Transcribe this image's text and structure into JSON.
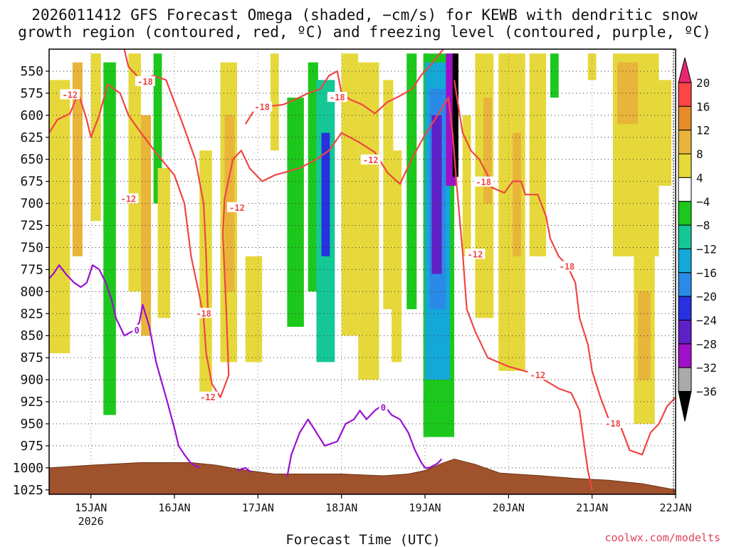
{
  "chart_data": {
    "type": "heatmap",
    "title_line1": "2026011412 GFS Forecast Omega (shaded, −cm/s) for KEWB with dendritic snow",
    "title_line2": "growth region (contoured, red, ºC) and freezing level (contoured, purple, ºC)",
    "xlabel": "Forecast Time (UTC)",
    "credit": "coolwx.com/modelts",
    "x_range_days": [
      14.5,
      22.0
    ],
    "x_ticks": [
      {
        "day": 15,
        "label": "15JAN",
        "sub": "2026"
      },
      {
        "day": 16,
        "label": "16JAN"
      },
      {
        "day": 17,
        "label": "17JAN"
      },
      {
        "day": 18,
        "label": "18JAN"
      },
      {
        "day": 19,
        "label": "19JAN"
      },
      {
        "day": 20,
        "label": "20JAN"
      },
      {
        "day": 21,
        "label": "21JAN"
      },
      {
        "day": 22,
        "label": "22JAN"
      }
    ],
    "y_range_hpa": [
      525,
      1030
    ],
    "y_ticks": [
      550,
      575,
      600,
      625,
      650,
      675,
      700,
      725,
      750,
      775,
      800,
      825,
      850,
      875,
      900,
      925,
      950,
      975,
      1000,
      1025
    ],
    "colorbar": {
      "labels": [
        "20",
        "16",
        "12",
        "8",
        "4",
        "−4",
        "−8",
        "−12",
        "−16",
        "−20",
        "−24",
        "−28",
        "−32",
        "−36"
      ],
      "colors": [
        "#e8266e",
        "#ff4545",
        "#e68a2a",
        "#e8b43a",
        "#e6d83a",
        "#ffffff",
        "#1cc81c",
        "#14c896",
        "#14a8d8",
        "#2a8ae8",
        "#2830e0",
        "#6020c8",
        "#a010c8",
        "#aaaaaa",
        "#000000"
      ]
    },
    "omega_features": [
      {
        "t0": 14.5,
        "t1": 14.75,
        "p0": 560,
        "p1": 870,
        "value": 5
      },
      {
        "t0": 14.78,
        "t1": 14.9,
        "p0": 540,
        "p1": 760,
        "value": 9
      },
      {
        "t0": 15.0,
        "t1": 15.12,
        "p0": 530,
        "p1": 720,
        "value": 6
      },
      {
        "t0": 15.15,
        "t1": 15.3,
        "p0": 540,
        "p1": 940,
        "value": -6
      },
      {
        "t0": 15.45,
        "t1": 15.6,
        "p0": 530,
        "p1": 800,
        "value": 6
      },
      {
        "t0": 15.6,
        "t1": 15.72,
        "p0": 600,
        "p1": 850,
        "value": 9
      },
      {
        "t0": 15.75,
        "t1": 15.85,
        "p0": 530,
        "p1": 700,
        "value": -6
      },
      {
        "t0": 15.8,
        "t1": 15.95,
        "p0": 660,
        "p1": 830,
        "value": 6
      },
      {
        "t0": 16.3,
        "t1": 16.45,
        "p0": 640,
        "p1": 920,
        "value": 6
      },
      {
        "t0": 16.55,
        "t1": 16.75,
        "p0": 540,
        "p1": 880,
        "value": 7
      },
      {
        "t0": 16.6,
        "t1": 16.72,
        "p0": 600,
        "p1": 800,
        "value": 11
      },
      {
        "t0": 16.85,
        "t1": 17.05,
        "p0": 760,
        "p1": 880,
        "value": 5
      },
      {
        "t0": 17.15,
        "t1": 17.25,
        "p0": 530,
        "p1": 640,
        "value": 5
      },
      {
        "t0": 17.35,
        "t1": 17.55,
        "p0": 580,
        "p1": 840,
        "value": -6
      },
      {
        "t0": 17.6,
        "t1": 17.72,
        "p0": 540,
        "p1": 800,
        "value": -6
      },
      {
        "t0": 17.7,
        "t1": 17.92,
        "p0": 560,
        "p1": 880,
        "value": -10
      },
      {
        "t0": 17.76,
        "t1": 17.86,
        "p0": 620,
        "p1": 760,
        "value": -21
      },
      {
        "t0": 18.0,
        "t1": 18.2,
        "p0": 530,
        "p1": 850,
        "value": 5
      },
      {
        "t0": 18.2,
        "t1": 18.45,
        "p0": 540,
        "p1": 900,
        "value": 6
      },
      {
        "t0": 18.5,
        "t1": 18.62,
        "p0": 560,
        "p1": 820,
        "value": 5
      },
      {
        "t0": 18.6,
        "t1": 18.72,
        "p0": 640,
        "p1": 880,
        "value": 6
      },
      {
        "t0": 18.78,
        "t1": 18.9,
        "p0": 530,
        "p1": 820,
        "value": -6
      },
      {
        "t0": 18.98,
        "t1": 19.35,
        "p0": 530,
        "p1": 965,
        "value": -7
      },
      {
        "t0": 19.0,
        "t1": 19.3,
        "p0": 540,
        "p1": 900,
        "value": -14
      },
      {
        "t0": 19.05,
        "t1": 19.25,
        "p0": 570,
        "p1": 820,
        "value": -18
      },
      {
        "t0": 19.08,
        "t1": 19.2,
        "p0": 600,
        "p1": 780,
        "value": -25
      },
      {
        "t0": 19.25,
        "t1": 19.38,
        "p0": 530,
        "p1": 680,
        "value": -29
      },
      {
        "t0": 19.33,
        "t1": 19.4,
        "p0": 530,
        "p1": 670,
        "value": -37
      },
      {
        "t0": 19.45,
        "t1": 19.55,
        "p0": 600,
        "p1": 760,
        "value": 6
      },
      {
        "t0": 19.6,
        "t1": 19.82,
        "p0": 530,
        "p1": 830,
        "value": 5
      },
      {
        "t0": 19.7,
        "t1": 19.8,
        "p0": 580,
        "p1": 700,
        "value": 9
      },
      {
        "t0": 19.88,
        "t1": 20.2,
        "p0": 530,
        "p1": 890,
        "value": 5
      },
      {
        "t0": 20.05,
        "t1": 20.15,
        "p0": 620,
        "p1": 760,
        "value": 8
      },
      {
        "t0": 20.25,
        "t1": 20.45,
        "p0": 530,
        "p1": 760,
        "value": 5
      },
      {
        "t0": 20.5,
        "t1": 20.6,
        "p0": 530,
        "p1": 580,
        "value": -6
      },
      {
        "t0": 20.95,
        "t1": 21.05,
        "p0": 530,
        "p1": 560,
        "value": 5
      },
      {
        "t0": 21.25,
        "t1": 21.8,
        "p0": 530,
        "p1": 760,
        "value": 5
      },
      {
        "t0": 21.3,
        "t1": 21.55,
        "p0": 540,
        "p1": 610,
        "value": 10
      },
      {
        "t0": 21.5,
        "t1": 21.75,
        "p0": 760,
        "p1": 950,
        "value": 5
      },
      {
        "t0": 21.55,
        "t1": 21.7,
        "p0": 800,
        "p1": 900,
        "value": 10
      },
      {
        "t0": 21.8,
        "t1": 21.95,
        "p0": 560,
        "p1": 680,
        "value": 6
      }
    ],
    "terrain_hpa": [
      [
        14.5,
        1000
      ],
      [
        15.0,
        997
      ],
      [
        15.6,
        994
      ],
      [
        16.2,
        994
      ],
      [
        16.5,
        997
      ],
      [
        16.8,
        1002
      ],
      [
        17.2,
        1007
      ],
      [
        17.6,
        1007
      ],
      [
        18.0,
        1007
      ],
      [
        18.5,
        1009
      ],
      [
        18.8,
        1007
      ],
      [
        19.0,
        1003
      ],
      [
        19.2,
        995
      ],
      [
        19.35,
        990
      ],
      [
        19.6,
        996
      ],
      [
        19.9,
        1006
      ],
      [
        20.4,
        1009
      ],
      [
        20.8,
        1012
      ],
      [
        21.2,
        1014
      ],
      [
        21.6,
        1018
      ],
      [
        22.0,
        1025
      ]
    ],
    "contours": [
      {
        "label": "-12",
        "color": "#f04545",
        "points": [
          [
            14.5,
            620
          ],
          [
            14.6,
            605
          ],
          [
            14.75,
            598
          ],
          [
            14.85,
            575
          ],
          [
            14.95,
            605
          ],
          [
            15.0,
            625
          ],
          [
            15.1,
            600
          ],
          [
            15.2,
            565
          ],
          [
            15.35,
            575
          ],
          [
            15.45,
            600
          ],
          [
            15.6,
            620
          ],
          [
            15.8,
            645
          ],
          [
            16.0,
            668
          ],
          [
            16.12,
            700
          ],
          [
            16.2,
            760
          ],
          [
            16.3,
            805
          ],
          [
            16.35,
            830
          ],
          [
            16.38,
            870
          ],
          [
            16.45,
            905
          ],
          [
            16.55,
            920
          ],
          [
            16.65,
            895
          ],
          [
            16.62,
            820
          ],
          [
            16.58,
            735
          ],
          [
            16.6,
            695
          ],
          [
            16.7,
            650
          ],
          [
            16.8,
            640
          ],
          [
            16.9,
            660
          ],
          [
            17.05,
            675
          ],
          [
            17.2,
            668
          ],
          [
            17.5,
            660
          ],
          [
            17.7,
            650
          ],
          [
            17.85,
            640
          ],
          [
            18.0,
            620
          ],
          [
            18.2,
            630
          ],
          [
            18.4,
            642
          ],
          [
            18.55,
            665
          ],
          [
            18.7,
            678
          ],
          [
            18.85,
            648
          ],
          [
            19.0,
            622
          ],
          [
            19.15,
            600
          ],
          [
            19.28,
            580
          ],
          [
            19.33,
            620
          ],
          [
            19.38,
            680
          ],
          [
            19.45,
            755
          ],
          [
            19.5,
            820
          ],
          [
            19.6,
            845
          ],
          [
            19.75,
            875
          ],
          [
            20.0,
            885
          ],
          [
            20.3,
            893
          ],
          [
            20.6,
            910
          ],
          [
            20.75,
            915
          ],
          [
            20.85,
            935
          ],
          [
            20.9,
            970
          ],
          [
            20.95,
            1003
          ],
          [
            21.0,
            1025
          ]
        ],
        "label_at": [
          [
            14.75,
            577
          ],
          [
            15.45,
            695
          ],
          [
            16.4,
            920
          ],
          [
            16.75,
            705
          ],
          [
            18.35,
            651
          ],
          [
            19.6,
            758
          ],
          [
            20.35,
            895
          ]
        ]
      },
      {
        "label": "-18",
        "color": "#f04545",
        "points": [
          [
            15.4,
            525
          ],
          [
            15.45,
            545
          ],
          [
            15.6,
            560
          ],
          [
            15.75,
            555
          ],
          [
            15.9,
            560
          ],
          [
            16.0,
            585
          ],
          [
            16.1,
            610
          ],
          [
            16.25,
            650
          ],
          [
            16.35,
            700
          ],
          [
            16.38,
            760
          ],
          [
            16.4,
            820
          ]
        ],
        "label_at": [
          [
            15.65,
            562
          ],
          [
            16.35,
            825
          ]
        ]
      },
      {
        "label": "-18",
        "color": "#f04545",
        "points": [
          [
            16.85,
            610
          ],
          [
            16.95,
            595
          ],
          [
            17.1,
            590
          ],
          [
            17.3,
            588
          ],
          [
            17.45,
            582
          ],
          [
            17.6,
            575
          ],
          [
            17.75,
            570
          ],
          [
            17.85,
            555
          ],
          [
            17.95,
            550
          ],
          [
            18.0,
            575
          ],
          [
            18.1,
            582
          ],
          [
            18.25,
            588
          ],
          [
            18.4,
            598
          ],
          [
            18.55,
            585
          ],
          [
            18.7,
            578
          ],
          [
            18.85,
            570
          ],
          [
            18.95,
            555
          ],
          [
            19.05,
            545
          ],
          [
            19.15,
            533
          ],
          [
            19.22,
            525
          ]
        ],
        "label_at": [
          [
            17.05,
            591
          ],
          [
            17.95,
            580
          ]
        ]
      },
      {
        "label": "-18",
        "color": "#f04545",
        "points": [
          [
            19.35,
            560
          ],
          [
            19.45,
            620
          ],
          [
            19.55,
            640
          ],
          [
            19.65,
            650
          ],
          [
            19.75,
            668
          ],
          [
            19.8,
            682
          ],
          [
            19.95,
            688
          ],
          [
            20.05,
            675
          ],
          [
            20.15,
            675
          ],
          [
            20.2,
            690
          ],
          [
            20.35,
            690
          ],
          [
            20.45,
            715
          ],
          [
            20.5,
            740
          ],
          [
            20.6,
            760
          ],
          [
            20.7,
            770
          ],
          [
            20.8,
            790
          ],
          [
            20.85,
            830
          ],
          [
            20.95,
            860
          ],
          [
            21.0,
            890
          ],
          [
            21.1,
            920
          ],
          [
            21.2,
            945
          ],
          [
            21.35,
            955
          ],
          [
            21.45,
            980
          ],
          [
            21.6,
            985
          ],
          [
            21.7,
            960
          ],
          [
            21.8,
            950
          ],
          [
            21.9,
            930
          ],
          [
            22.0,
            920
          ]
        ],
        "label_at": [
          [
            19.7,
            676
          ],
          [
            20.7,
            772
          ],
          [
            21.25,
            950
          ]
        ]
      }
    ],
    "freezing_level": {
      "label": "0",
      "color": "#9b10d0",
      "points": [
        [
          14.5,
          785
        ],
        [
          14.55,
          780
        ],
        [
          14.62,
          770
        ],
        [
          14.7,
          780
        ],
        [
          14.8,
          790
        ],
        [
          14.88,
          795
        ],
        [
          14.95,
          790
        ],
        [
          15.02,
          770
        ],
        [
          15.1,
          775
        ],
        [
          15.18,
          790
        ],
        [
          15.25,
          810
        ],
        [
          15.3,
          830
        ],
        [
          15.4,
          850
        ],
        [
          15.5,
          845
        ],
        [
          15.58,
          835
        ],
        [
          15.62,
          815
        ],
        [
          15.7,
          840
        ],
        [
          15.78,
          880
        ],
        [
          15.9,
          920
        ],
        [
          16.0,
          955
        ],
        [
          16.05,
          975
        ],
        [
          16.12,
          985
        ],
        [
          16.2,
          995
        ],
        [
          16.3,
          1000
        ]
      ],
      "points2": [
        [
          16.75,
          1003
        ],
        [
          16.85,
          1000
        ],
        [
          16.92,
          1005
        ]
      ],
      "points3": [
        [
          17.35,
          1010
        ],
        [
          17.4,
          985
        ],
        [
          17.5,
          960
        ],
        [
          17.6,
          945
        ],
        [
          17.7,
          960
        ],
        [
          17.8,
          975
        ],
        [
          17.95,
          970
        ],
        [
          18.05,
          950
        ],
        [
          18.15,
          945
        ],
        [
          18.22,
          935
        ],
        [
          18.3,
          945
        ],
        [
          18.4,
          935
        ],
        [
          18.5,
          928
        ],
        [
          18.6,
          940
        ],
        [
          18.7,
          945
        ],
        [
          18.8,
          960
        ],
        [
          18.88,
          980
        ],
        [
          18.95,
          993
        ],
        [
          19.0,
          1000
        ],
        [
          19.05,
          1000
        ],
        [
          19.15,
          995
        ],
        [
          19.2,
          990
        ]
      ],
      "label_at": [
        [
          15.55,
          844
        ],
        [
          18.5,
          932
        ]
      ]
    }
  }
}
